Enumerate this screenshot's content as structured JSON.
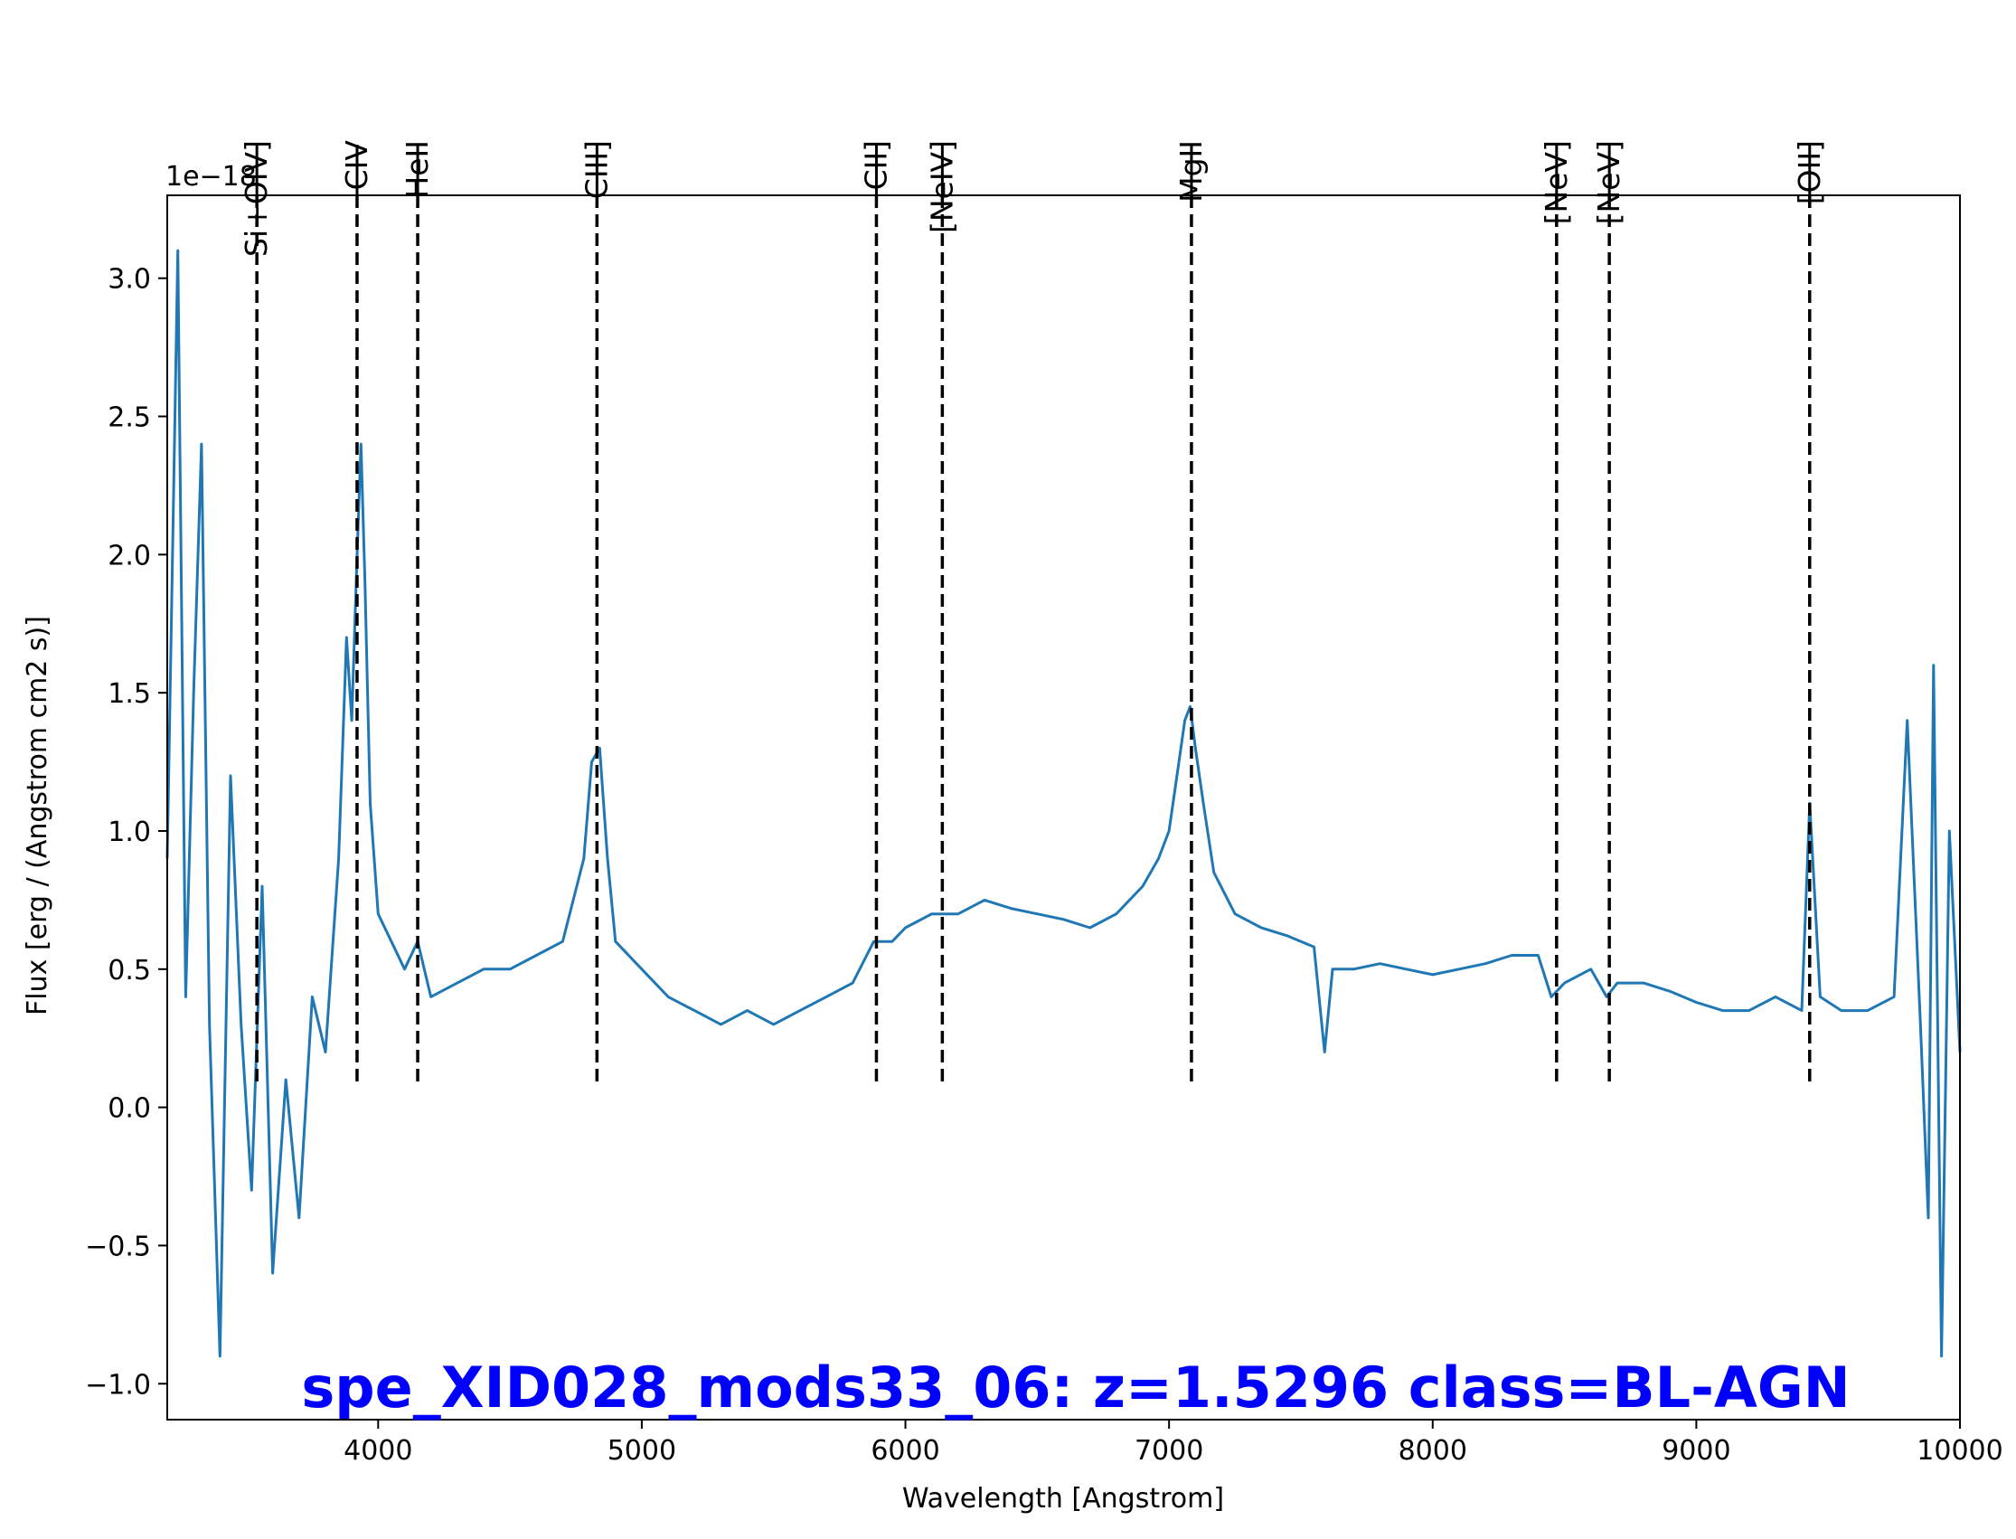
{
  "chart_data": {
    "type": "line",
    "title": "spe_XID028_mods33_06: z=1.5296 class=BL-AGN",
    "title_color": "#0000ff",
    "xlabel": "Wavelength [Angstrom]",
    "ylabel": "Flux [erg / (Angstrom cm2 s)]",
    "offset_label": "1e−18",
    "xlim": [
      3200,
      10000
    ],
    "ylim": [
      -1.13,
      3.3
    ],
    "x_ticks": [
      4000,
      5000,
      6000,
      7000,
      8000,
      9000,
      10000
    ],
    "x_tick_labels": [
      "4000",
      "5000",
      "6000",
      "7000",
      "8000",
      "9000",
      "10000"
    ],
    "y_ticks": [
      -1.0,
      -0.5,
      0.0,
      0.5,
      1.0,
      1.5,
      2.0,
      2.5,
      3.0
    ],
    "y_tick_labels": [
      "−1.0",
      "−0.5",
      "0.0",
      "0.5",
      "1.0",
      "1.5",
      "2.0",
      "2.5",
      "3.0"
    ],
    "grid": false,
    "series": [
      {
        "color": "#1f77b4",
        "x": [
          3200,
          3240,
          3270,
          3300,
          3330,
          3360,
          3400,
          3440,
          3480,
          3520,
          3560,
          3600,
          3650,
          3700,
          3750,
          3800,
          3850,
          3880,
          3900,
          3920,
          3935,
          3950,
          3970,
          4000,
          4050,
          4100,
          4150,
          4200,
          4300,
          4400,
          4500,
          4600,
          4700,
          4780,
          4810,
          4840,
          4870,
          4900,
          5000,
          5100,
          5200,
          5300,
          5400,
          5500,
          5600,
          5700,
          5800,
          5880,
          5950,
          6000,
          6100,
          6200,
          6300,
          6400,
          6500,
          6600,
          6700,
          6800,
          6900,
          6960,
          7000,
          7030,
          7060,
          7080,
          7100,
          7130,
          7170,
          7250,
          7350,
          7450,
          7550,
          7590,
          7620,
          7700,
          7800,
          7900,
          8000,
          8100,
          8200,
          8300,
          8400,
          8450,
          8500,
          8600,
          8660,
          8700,
          8800,
          8900,
          9000,
          9100,
          9200,
          9300,
          9400,
          9430,
          9470,
          9550,
          9650,
          9750,
          9800,
          9850,
          9880,
          9900,
          9930,
          9960,
          10000
        ],
        "values": [
          0.9,
          3.1,
          0.4,
          1.5,
          2.4,
          0.3,
          -0.9,
          1.2,
          0.3,
          -0.3,
          0.8,
          -0.6,
          0.1,
          -0.4,
          0.4,
          0.2,
          0.9,
          1.7,
          1.4,
          2.0,
          2.4,
          1.9,
          1.1,
          0.7,
          0.6,
          0.5,
          0.6,
          0.4,
          0.45,
          0.5,
          0.5,
          0.55,
          0.6,
          0.9,
          1.25,
          1.3,
          0.9,
          0.6,
          0.5,
          0.4,
          0.35,
          0.3,
          0.35,
          0.3,
          0.35,
          0.4,
          0.45,
          0.6,
          0.6,
          0.65,
          0.7,
          0.7,
          0.75,
          0.72,
          0.7,
          0.68,
          0.65,
          0.7,
          0.8,
          0.9,
          1.0,
          1.2,
          1.4,
          1.45,
          1.3,
          1.1,
          0.85,
          0.7,
          0.65,
          0.62,
          0.58,
          0.2,
          0.5,
          0.5,
          0.52,
          0.5,
          0.48,
          0.5,
          0.52,
          0.55,
          0.55,
          0.4,
          0.45,
          0.5,
          0.4,
          0.45,
          0.45,
          0.42,
          0.38,
          0.35,
          0.35,
          0.4,
          0.35,
          1.1,
          0.4,
          0.35,
          0.35,
          0.4,
          1.4,
          0.3,
          -0.4,
          1.6,
          -0.9,
          1.0,
          0.2
        ]
      }
    ],
    "lines": [
      {
        "label": "Si+OIV]",
        "x": 3540
      },
      {
        "label": "CIV",
        "x": 3920
      },
      {
        "label": "HeII",
        "x": 4150
      },
      {
        "label": "CIII]",
        "x": 4830
      },
      {
        "label": "CII]",
        "x": 5890
      },
      {
        "label": "[NeIV]",
        "x": 6140
      },
      {
        "label": "MgII",
        "x": 7085
      },
      {
        "label": "[NeV]",
        "x": 8470
      },
      {
        "label": "[NeV]",
        "x": 8670
      },
      {
        "label": "[OII]",
        "x": 9430
      }
    ]
  }
}
